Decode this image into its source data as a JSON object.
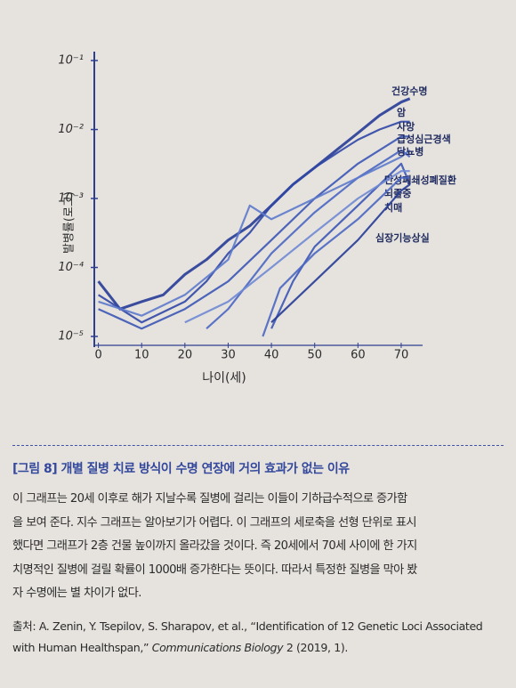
{
  "chart_data": {
    "type": "line",
    "xlabel": "나이(세)",
    "ylabel": "발병률(로그)",
    "xlim": [
      -3,
      77
    ],
    "xticks": [
      0,
      10,
      20,
      30,
      40,
      50,
      60,
      70
    ],
    "ylim": [
      1e-05,
      0.1
    ],
    "log_y": true,
    "yticks": [
      {
        "value": 1e-05,
        "label": "10⁻⁵"
      },
      {
        "value": 0.0001,
        "label": "10⁻⁴"
      },
      {
        "value": 0.001,
        "label": "10⁻³"
      },
      {
        "value": 0.01,
        "label": "10⁻²"
      },
      {
        "value": 0.1,
        "label": "10⁻¹"
      }
    ],
    "series": [
      {
        "name": "건강수명",
        "color": "#263b96",
        "x": [
          0,
          5,
          10,
          15,
          20,
          25,
          30,
          35,
          40,
          45,
          50,
          55,
          60,
          65,
          70,
          72
        ],
        "values": [
          6.3e-05,
          2.5e-05,
          3.2e-05,
          4e-05,
          7.9e-05,
          0.00013,
          0.00025,
          0.0004,
          0.00079,
          0.0016,
          0.0028,
          0.005,
          0.0089,
          0.016,
          0.025,
          0.028
        ]
      },
      {
        "name": "암",
        "color": "#2f46a6",
        "x": [
          0,
          10,
          20,
          25,
          30,
          35,
          40,
          45,
          50,
          55,
          60,
          65,
          70,
          72
        ],
        "values": [
          4e-05,
          1.6e-05,
          3.2e-05,
          6.3e-05,
          0.00016,
          0.00032,
          0.00079,
          0.0016,
          0.0028,
          0.0045,
          0.0071,
          0.01,
          0.013,
          0.013
        ]
      },
      {
        "name": "사망",
        "color": "#3b55b5",
        "x": [
          0,
          10,
          20,
          30,
          40,
          50,
          60,
          70,
          72
        ],
        "values": [
          2.5e-05,
          1.3e-05,
          2.5e-05,
          6.3e-05,
          0.00025,
          0.001,
          0.0032,
          0.0079,
          0.0079
        ]
      },
      {
        "name": "급성심근경색",
        "color": "#4a66c2",
        "x": [
          25,
          30,
          40,
          50,
          60,
          70,
          72
        ],
        "values": [
          1.3e-05,
          2.5e-05,
          0.00016,
          0.00063,
          0.002,
          0.005,
          0.004
        ]
      },
      {
        "name": "당뇨병",
        "color": "#5d79cc",
        "x": [
          0,
          10,
          20,
          30,
          35,
          40,
          50,
          60,
          70,
          72
        ],
        "values": [
          3.2e-05,
          2e-05,
          4e-05,
          0.00013,
          0.00079,
          0.0005,
          0.001,
          0.002,
          0.004,
          0.005
        ]
      },
      {
        "name": "만성폐쇄성폐질환",
        "color": "#3b55b5",
        "x": [
          40,
          45,
          50,
          60,
          70,
          72
        ],
        "values": [
          1.3e-05,
          6.3e-05,
          0.0002,
          0.00079,
          0.0032,
          0.0016
        ]
      },
      {
        "name": "뇌졸중",
        "color": "#6f88d4",
        "x": [
          20,
          30,
          40,
          50,
          60,
          70,
          72
        ],
        "values": [
          1.6e-05,
          3.2e-05,
          0.0001,
          0.00032,
          0.001,
          0.0025,
          0.0025
        ]
      },
      {
        "name": "치매",
        "color": "#4a66c2",
        "x": [
          38,
          42,
          50,
          60,
          70,
          72
        ],
        "values": [
          1e-05,
          5e-05,
          0.00016,
          0.0005,
          0.002,
          0.002
        ]
      },
      {
        "name": "심장기능상실",
        "color": "#263b96",
        "x": [
          40,
          50,
          60,
          70,
          72
        ],
        "values": [
          1.6e-05,
          6.3e-05,
          0.00025,
          0.0013,
          0.0016
        ]
      }
    ]
  },
  "caption": {
    "title": "[그림 8] 개별 질병 치료 방식이 수명 연장에 거의 효과가 없는 이유",
    "lines": [
      "이 그래프는 20세 이후로 해가 지날수록 질병에 걸리는 이들이 기하급수적으로 증가함",
      "을 보여 준다. 지수 그래프는 알아보기가 어렵다. 이 그래프의 세로축을 선형 단위로 표시",
      "했다면 그래프가 2층 건물 높이까지 올라갔을 것이다. 즉 20세에서 70세 사이에 한 가지",
      "치명적인 질병에 걸릴 확률이 1000배 증가한다는 뜻이다. 따라서 특정한 질병을 막아 봤",
      "자 수명에는 별 차이가 없다."
    ]
  },
  "source": {
    "line1": "출처: A. Zenin, Y. Tsepilov, S. Sharapov, et al., “Identification of 12 Genetic Loci Associated",
    "line2_start": "with Human Healthspan,” ",
    "journal": "Communications Biology",
    "line2_end": " 2 (2019, 1)."
  }
}
